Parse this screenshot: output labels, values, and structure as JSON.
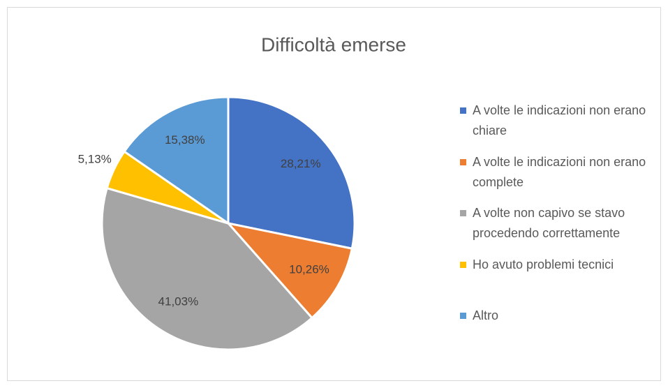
{
  "chart_data": {
    "type": "pie",
    "title": "Difficoltà emerse",
    "categories": [
      "A volte le indicazioni non erano chiare",
      "A volte le indicazioni non erano complete",
      "A volte non capivo se stavo procedendo correttamente",
      "Ho avuto problemi tecnici",
      "Altro"
    ],
    "values": [
      28.21,
      10.26,
      41.03,
      5.13,
      15.38
    ],
    "value_labels": [
      "28,21%",
      "10,26%",
      "41,03%",
      "5,13%",
      "15,38%"
    ],
    "colors": [
      "#4472c4",
      "#ed7d31",
      "#a5a5a5",
      "#ffc000",
      "#5b9bd5"
    ],
    "legend": "right"
  }
}
